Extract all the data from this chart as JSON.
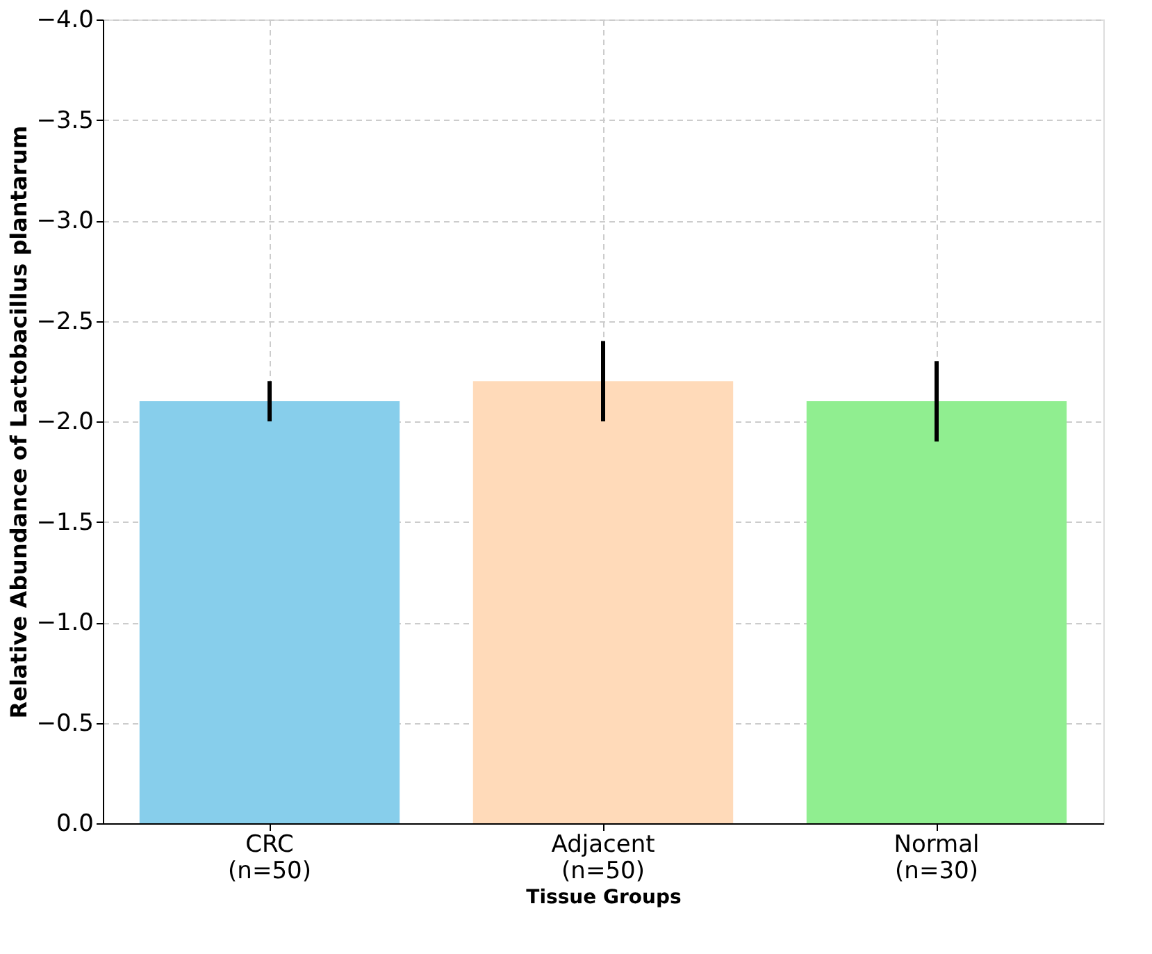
{
  "chart_data": {
    "type": "bar",
    "xlabel": "Tissue Groups",
    "ylabel": "Relative Abundance of Lactobacillus plantarum",
    "categories": [
      "CRC\n(n=50)",
      "Adjacent\n(n=50)",
      "Normal\n(n=30)"
    ],
    "values": [
      -2.1,
      -2.2,
      -2.1
    ],
    "colors": [
      "#87ceeb",
      "#ffdab9",
      "#90ee90"
    ],
    "errors": [
      0.1,
      0.2,
      0.2
    ],
    "ylim": [
      0,
      -4.0
    ],
    "yticks": [
      {
        "value": 0,
        "label": "0.0"
      },
      {
        "value": -0.5,
        "label": "−0.5"
      },
      {
        "value": -1.0,
        "label": "−1.0"
      },
      {
        "value": -1.5,
        "label": "−1.5"
      },
      {
        "value": -2.0,
        "label": "−2.0"
      },
      {
        "value": -2.5,
        "label": "−2.5"
      },
      {
        "value": -3.0,
        "label": "−3.0"
      },
      {
        "value": -3.5,
        "label": "−3.5"
      },
      {
        "value": -4.0,
        "label": "−4.0"
      }
    ],
    "grid": true
  }
}
